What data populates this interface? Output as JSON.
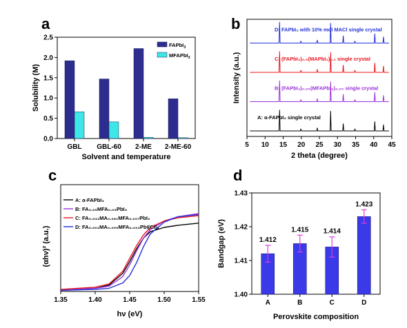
{
  "panels": {
    "a": "a",
    "b": "b",
    "c": "c",
    "d": "d"
  },
  "chart_data": [
    {
      "id": "a",
      "type": "bar",
      "categories": [
        "GBL",
        "GBL-60",
        "2-ME",
        "2-ME-60"
      ],
      "series": [
        {
          "name": "FAPbI3",
          "legend_main": "FAPbI",
          "legend_sub": "3",
          "color": "#2d2d8f",
          "values": [
            1.92,
            1.47,
            2.22,
            0.98
          ]
        },
        {
          "name": "MFAPbI3",
          "legend_main": "MFAPbI",
          "legend_sub": "3",
          "color": "#3ee7e7",
          "values": [
            0.66,
            0.41,
            0.03,
            0.02
          ]
        }
      ],
      "xlabel": "Solvent and temperature",
      "ylabel": "Solubility (M)",
      "ylim": [
        0,
        2.5
      ],
      "yticks": [
        "0.0",
        "0.5",
        "1.0",
        "1.5",
        "2.0",
        "2.5"
      ],
      "legend": "top-right"
    },
    {
      "id": "b",
      "type": "line",
      "xlabel": "2 theta (degree)",
      "ylabel": "Intensity (a.u.)",
      "xlim": [
        5,
        45
      ],
      "xticks": [
        "5",
        "10",
        "15",
        "20",
        "25",
        "30",
        "35",
        "40",
        "45"
      ],
      "peaks_2theta": [
        14.0,
        19.9,
        24.4,
        28.1,
        31.6,
        34.8,
        40.3,
        42.7
      ],
      "peak_heights": [
        1.0,
        0.1,
        0.15,
        0.95,
        0.35,
        0.1,
        0.45,
        0.3
      ],
      "series": [
        {
          "label": "A: α-FAPbI₃ single crystal",
          "color": "#000000"
        },
        {
          "label": "B: (FAPbI₃)₀.₉₅(MFAPbI₃)₀.₀₅ single crystal",
          "color": "#9b30d9"
        },
        {
          "label": "C: (FAPbI₃)₀.₉(MAPbI₃)₀.₁ single crystal",
          "color": "#e8141e"
        },
        {
          "label": "D: FAPbI₃ with 10% mol MACl single crystal",
          "color": "#1f2dd8"
        }
      ]
    },
    {
      "id": "c",
      "type": "line",
      "xlabel": "hν (eV)",
      "ylabel": "(αhν)² (a.u.)",
      "xlim": [
        1.35,
        1.55
      ],
      "xticks": [
        "1.35",
        "1.40",
        "1.45",
        "1.50",
        "1.55"
      ],
      "legend": "top-left",
      "series": [
        {
          "name": "A: α-FAPbI₃",
          "color": "#000000",
          "x": [
            1.35,
            1.4,
            1.42,
            1.44,
            1.45,
            1.46,
            1.47,
            1.48,
            1.5,
            1.52,
            1.55
          ],
          "y": [
            0.02,
            0.03,
            0.06,
            0.17,
            0.28,
            0.4,
            0.5,
            0.56,
            0.6,
            0.62,
            0.64
          ]
        },
        {
          "name": "B: FA₀.₉₅MFA₀.₀₅PbI₃",
          "color": "#9b30d9",
          "x": [
            1.35,
            1.4,
            1.42,
            1.44,
            1.45,
            1.46,
            1.47,
            1.48,
            1.5,
            1.52,
            1.55
          ],
          "y": [
            0.02,
            0.03,
            0.05,
            0.14,
            0.25,
            0.38,
            0.5,
            0.58,
            0.66,
            0.7,
            0.73
          ]
        },
        {
          "name": "C: FA₀.₉₃₂MA₀.₀₆₁MFA₀.₀₀₇PbI₃",
          "color": "#e8141e",
          "x": [
            1.35,
            1.4,
            1.42,
            1.44,
            1.45,
            1.46,
            1.47,
            1.48,
            1.5,
            1.52,
            1.55
          ],
          "y": [
            0.02,
            0.04,
            0.07,
            0.19,
            0.31,
            0.43,
            0.53,
            0.6,
            0.66,
            0.69,
            0.71
          ]
        },
        {
          "name": "D: FA₀.₉₀₂MA₀.₀₉₅MFA₀.₀₀₃PbI(Cl)₃",
          "color": "#1f2dd8",
          "x": [
            1.35,
            1.4,
            1.42,
            1.44,
            1.45,
            1.46,
            1.47,
            1.48,
            1.5,
            1.52,
            1.55
          ],
          "y": [
            0.01,
            0.02,
            0.03,
            0.08,
            0.15,
            0.27,
            0.42,
            0.54,
            0.65,
            0.7,
            0.72
          ]
        }
      ]
    },
    {
      "id": "d",
      "type": "bar",
      "categories": [
        "A",
        "B",
        "C",
        "D"
      ],
      "values": [
        1.412,
        1.415,
        1.414,
        1.423
      ],
      "value_labels": [
        "1.412",
        "1.415",
        "1.414",
        "1.423"
      ],
      "errors": [
        0.0025,
        0.0025,
        0.003,
        0.002
      ],
      "color": "#3a3ae8",
      "error_color": "#e23be0",
      "xlabel": "Perovskite composition",
      "ylabel": "Bandgap (eV)",
      "ylim": [
        1.4,
        1.43
      ],
      "yticks": [
        "1.40",
        "1.41",
        "1.42",
        "1.43"
      ]
    }
  ]
}
